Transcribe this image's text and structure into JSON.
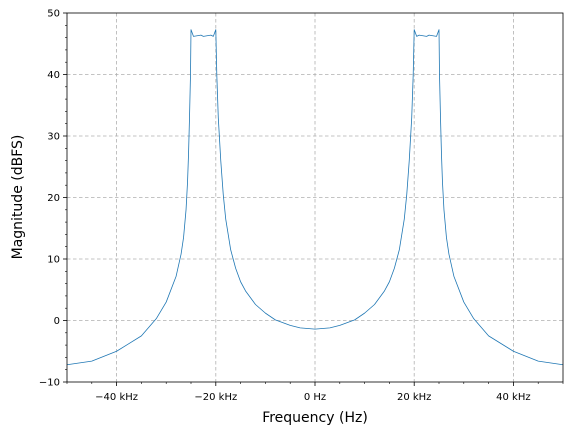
{
  "chart_data": {
    "type": "line",
    "title": "",
    "xlabel": "Frequency (Hz)",
    "ylabel": "Magnitude (dBFS)",
    "xlim": [
      -50000,
      50000
    ],
    "ylim": [
      -10,
      50
    ],
    "grid": true,
    "line_color": "#1f77b4",
    "x_ticks": [
      {
        "value": -40000,
        "label": "−40 kHz"
      },
      {
        "value": -20000,
        "label": "−20 kHz"
      },
      {
        "value": 0,
        "label": "0 Hz"
      },
      {
        "value": 20000,
        "label": "20 kHz"
      },
      {
        "value": 40000,
        "label": "40 kHz"
      }
    ],
    "y_ticks": [
      {
        "value": -10,
        "label": "−10"
      },
      {
        "value": 0,
        "label": "0"
      },
      {
        "value": 10,
        "label": "10"
      },
      {
        "value": 20,
        "label": "20"
      },
      {
        "value": 30,
        "label": "30"
      },
      {
        "value": 40,
        "label": "40"
      },
      {
        "value": 50,
        "label": "50"
      }
    ],
    "x_minor_step": 5000,
    "y_minor_step": 2,
    "series": [
      {
        "x": [
          -50000,
          -45000,
          -40000,
          -35000,
          -32000,
          -30000,
          -28000,
          -27000,
          -26500,
          -26000,
          -25700,
          -25500,
          -25300,
          -25100,
          -25000,
          -24500,
          -23000,
          -22500,
          -21000,
          -20500,
          -20000,
          -19800,
          -19500,
          -19000,
          -18500,
          -18000,
          -17000,
          -16000,
          -15000,
          -14000,
          -12000,
          -10000,
          -8000,
          -5000,
          -3000,
          0,
          3000,
          5000,
          8000,
          10000,
          12000,
          14000,
          15000,
          16000,
          17000,
          18000,
          18500,
          19000,
          19500,
          19800,
          20000,
          20500,
          21000,
          22500,
          23000,
          24500,
          25000,
          25100,
          25300,
          25500,
          25700,
          26000,
          26500,
          27000,
          28000,
          30000,
          32000,
          35000,
          40000,
          45000,
          50000
        ],
        "y": [
          -7.2,
          -6.6,
          -5.0,
          -2.5,
          0.3,
          3.0,
          7.2,
          10.8,
          13.5,
          18.0,
          22.5,
          27.0,
          33.0,
          40.0,
          47.3,
          46.2,
          46.4,
          46.2,
          46.4,
          46.2,
          47.3,
          40.0,
          33.0,
          26.0,
          20.5,
          16.5,
          11.5,
          8.5,
          6.3,
          4.8,
          2.6,
          1.2,
          0.1,
          -0.8,
          -1.2,
          -1.4,
          -1.2,
          -0.8,
          0.1,
          1.2,
          2.6,
          4.8,
          6.3,
          8.5,
          11.5,
          16.5,
          20.5,
          26.0,
          33.0,
          40.0,
          47.3,
          46.2,
          46.4,
          46.2,
          46.4,
          46.2,
          47.3,
          40.0,
          33.0,
          27.0,
          22.5,
          18.0,
          13.5,
          10.8,
          7.2,
          3.0,
          0.3,
          -2.5,
          -5.0,
          -6.6,
          -7.2
        ]
      }
    ]
  }
}
